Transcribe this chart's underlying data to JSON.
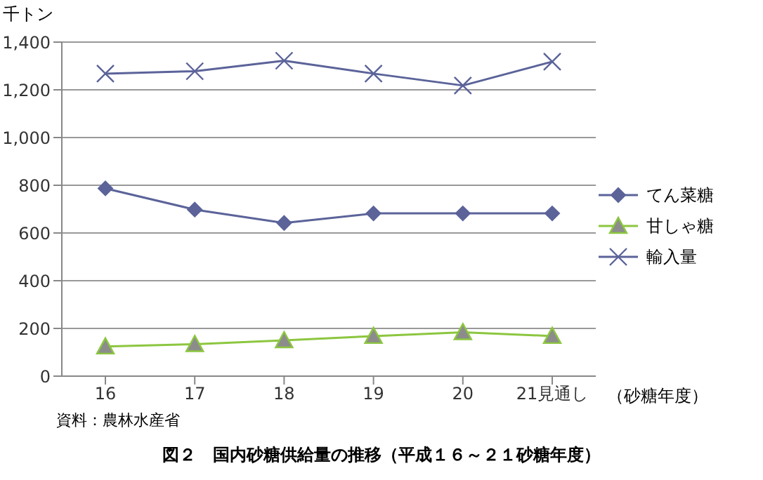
{
  "chart_data": {
    "type": "line",
    "title": "図２　国内砂糖供給量の推移（平成１６～２１砂糖年度）",
    "ylabel": "千トン",
    "xlabel": "（砂糖年度）",
    "annotations": [
      "資料：農林水産省"
    ],
    "categories": [
      "16",
      "17",
      "18",
      "19",
      "20",
      "21見通し"
    ],
    "series": [
      {
        "name": "てん菜糖",
        "color": "#5b6399",
        "marker": "diamond",
        "values": [
          787,
          698,
          642,
          682,
          682,
          682
        ]
      },
      {
        "name": "甘しゃ糖",
        "color": "#8cc63f",
        "marker": "triangle",
        "values": [
          124,
          134,
          150,
          168,
          184,
          168
        ]
      },
      {
        "name": "輸入量",
        "color": "#5b6399",
        "marker": "cross",
        "values": [
          1268,
          1278,
          1322,
          1268,
          1218,
          1318
        ]
      }
    ],
    "ylim": [
      0,
      1400
    ],
    "yticks": [
      0,
      200,
      400,
      600,
      800,
      {
        "value": 1000,
        "label": "1,000"
      },
      {
        "value": 1200,
        "label": "1,200"
      },
      {
        "value": 1400,
        "label": "1,400"
      }
    ],
    "grid": "y",
    "legend": "right"
  }
}
